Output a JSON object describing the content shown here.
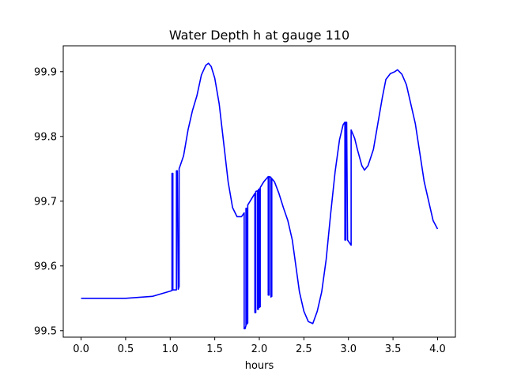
{
  "chart_data": {
    "type": "line",
    "title": "Water Depth h at gauge 110",
    "xlabel": "hours",
    "ylabel": "",
    "xlim": [
      -0.2,
      4.2
    ],
    "ylim": [
      99.49,
      99.94
    ],
    "x_ticks": [
      0.0,
      0.5,
      1.0,
      1.5,
      2.0,
      2.5,
      3.0,
      3.5,
      4.0
    ],
    "x_tick_labels": [
      "0.0",
      "0.5",
      "1.0",
      "1.5",
      "2.0",
      "2.5",
      "3.0",
      "3.5",
      "4.0"
    ],
    "y_ticks": [
      99.5,
      99.6,
      99.7,
      99.8,
      99.9
    ],
    "y_tick_labels": [
      "99.5",
      "99.6",
      "99.7",
      "99.8",
      "99.9"
    ],
    "grid": false,
    "legend": "none",
    "series": [
      {
        "color": "#0000ff",
        "points": [
          [
            0.0,
            99.55
          ],
          [
            0.5,
            99.55
          ],
          [
            0.8,
            99.553
          ],
          [
            1.0,
            99.561
          ],
          [
            1.02,
            99.562
          ],
          [
            1.02,
            99.743
          ],
          [
            1.03,
            99.743
          ],
          [
            1.03,
            99.563
          ],
          [
            1.07,
            99.563
          ],
          [
            1.07,
            99.747
          ],
          [
            1.08,
            99.747
          ],
          [
            1.09,
            99.564
          ],
          [
            1.1,
            99.568
          ],
          [
            1.1,
            99.75
          ],
          [
            1.15,
            99.77
          ],
          [
            1.2,
            99.81
          ],
          [
            1.25,
            99.84
          ],
          [
            1.3,
            99.863
          ],
          [
            1.35,
            99.895
          ],
          [
            1.4,
            99.91
          ],
          [
            1.43,
            99.913
          ],
          [
            1.46,
            99.908
          ],
          [
            1.5,
            99.89
          ],
          [
            1.55,
            99.85
          ],
          [
            1.6,
            99.79
          ],
          [
            1.65,
            99.73
          ],
          [
            1.7,
            99.69
          ],
          [
            1.75,
            99.676
          ],
          [
            1.8,
            99.676
          ],
          [
            1.83,
            99.682
          ],
          [
            1.83,
            99.503
          ],
          [
            1.84,
            99.503
          ],
          [
            1.85,
            99.508
          ],
          [
            1.85,
            99.689
          ],
          [
            1.86,
            99.689
          ],
          [
            1.86,
            99.51
          ],
          [
            1.87,
            99.512
          ],
          [
            1.87,
            99.694
          ],
          [
            1.95,
            99.712
          ],
          [
            1.95,
            99.528
          ],
          [
            1.96,
            99.528
          ],
          [
            1.96,
            99.715
          ],
          [
            1.98,
            99.716
          ],
          [
            1.98,
            99.533
          ],
          [
            1.99,
            99.533
          ],
          [
            1.99,
            99.718
          ],
          [
            2.0,
            99.719
          ],
          [
            2.0,
            99.536
          ],
          [
            2.01,
            99.537
          ],
          [
            2.01,
            99.721
          ],
          [
            2.05,
            99.73
          ],
          [
            2.1,
            99.738
          ],
          [
            2.1,
            99.555
          ],
          [
            2.11,
            99.555
          ],
          [
            2.11,
            99.738
          ],
          [
            2.13,
            99.737
          ],
          [
            2.13,
            99.552
          ],
          [
            2.14,
            99.553
          ],
          [
            2.14,
            99.735
          ],
          [
            2.17,
            99.73
          ],
          [
            2.22,
            99.712
          ],
          [
            2.27,
            99.69
          ],
          [
            2.32,
            99.67
          ],
          [
            2.37,
            99.64
          ],
          [
            2.41,
            99.6
          ],
          [
            2.45,
            99.56
          ],
          [
            2.5,
            99.53
          ],
          [
            2.55,
            99.514
          ],
          [
            2.6,
            99.511
          ],
          [
            2.65,
            99.53
          ],
          [
            2.7,
            99.56
          ],
          [
            2.75,
            99.61
          ],
          [
            2.8,
            99.68
          ],
          [
            2.85,
            99.745
          ],
          [
            2.9,
            99.795
          ],
          [
            2.94,
            99.818
          ],
          [
            2.96,
            99.822
          ],
          [
            2.96,
            99.64
          ],
          [
            2.97,
            99.64
          ],
          [
            2.97,
            99.822
          ],
          [
            2.98,
            99.822
          ],
          [
            2.99,
            99.64
          ],
          [
            3.0,
            99.638
          ],
          [
            3.03,
            99.632
          ],
          [
            3.03,
            99.81
          ],
          [
            3.07,
            99.797
          ],
          [
            3.1,
            99.78
          ],
          [
            3.15,
            99.755
          ],
          [
            3.18,
            99.748
          ],
          [
            3.22,
            99.755
          ],
          [
            3.28,
            99.78
          ],
          [
            3.33,
            99.82
          ],
          [
            3.38,
            99.86
          ],
          [
            3.42,
            99.888
          ],
          [
            3.47,
            99.897
          ],
          [
            3.52,
            99.9
          ],
          [
            3.55,
            99.903
          ],
          [
            3.6,
            99.896
          ],
          [
            3.65,
            99.88
          ],
          [
            3.7,
            99.85
          ],
          [
            3.75,
            99.82
          ],
          [
            3.8,
            99.775
          ],
          [
            3.85,
            99.73
          ],
          [
            3.9,
            99.7
          ],
          [
            3.95,
            99.67
          ],
          [
            4.0,
            99.657
          ]
        ]
      }
    ]
  }
}
